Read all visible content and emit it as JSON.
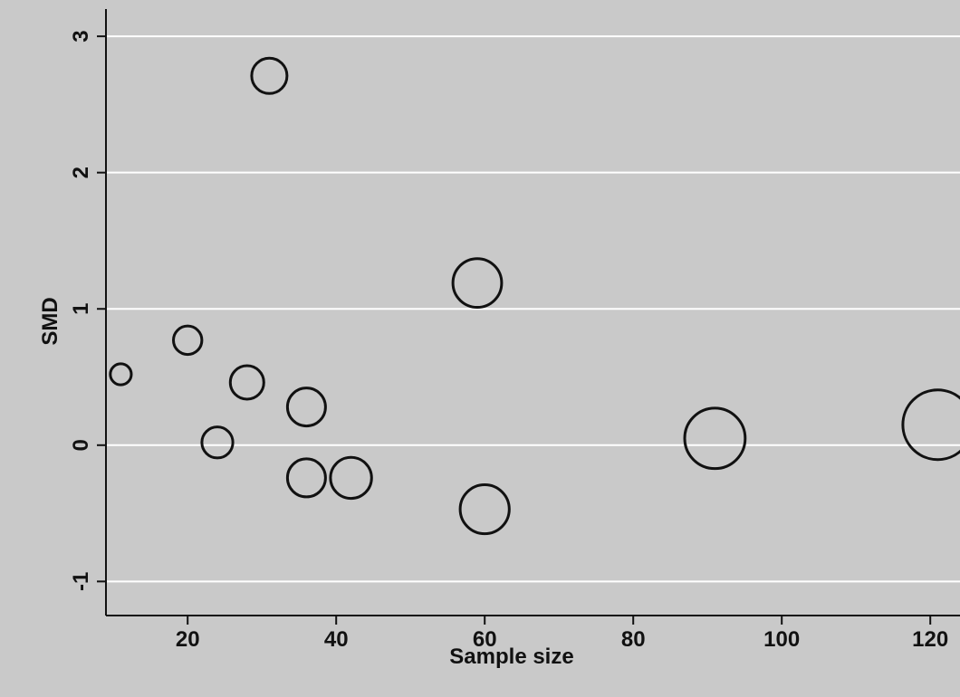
{
  "chart_data": {
    "type": "scatter",
    "title": "",
    "xlabel": "Sample size",
    "ylabel": "SMD",
    "xlim": [
      9,
      124
    ],
    "ylim": [
      -1.25,
      3.2
    ],
    "x_ticks": [
      20,
      40,
      60,
      80,
      100,
      120
    ],
    "y_ticks": [
      -1,
      0,
      1,
      2,
      3
    ],
    "grid": "horizontal",
    "legend": "none",
    "marker": "hollow-circle",
    "marker_size_encodes": "sample size",
    "colors": {
      "marker": "#111111",
      "grid": "#ffffff",
      "axis": "#111111",
      "background": "#c9c9c9"
    },
    "series": [
      {
        "points": [
          {
            "x": 11,
            "y": 0.52
          },
          {
            "x": 20,
            "y": 0.77
          },
          {
            "x": 24,
            "y": 0.02
          },
          {
            "x": 28,
            "y": 0.46
          },
          {
            "x": 31,
            "y": 2.71
          },
          {
            "x": 36,
            "y": 0.28
          },
          {
            "x": 36,
            "y": -0.24
          },
          {
            "x": 42,
            "y": -0.24
          },
          {
            "x": 59,
            "y": 1.19
          },
          {
            "x": 60,
            "y": -0.47
          },
          {
            "x": 91,
            "y": 0.05
          },
          {
            "x": 121,
            "y": 0.15
          }
        ]
      }
    ]
  }
}
